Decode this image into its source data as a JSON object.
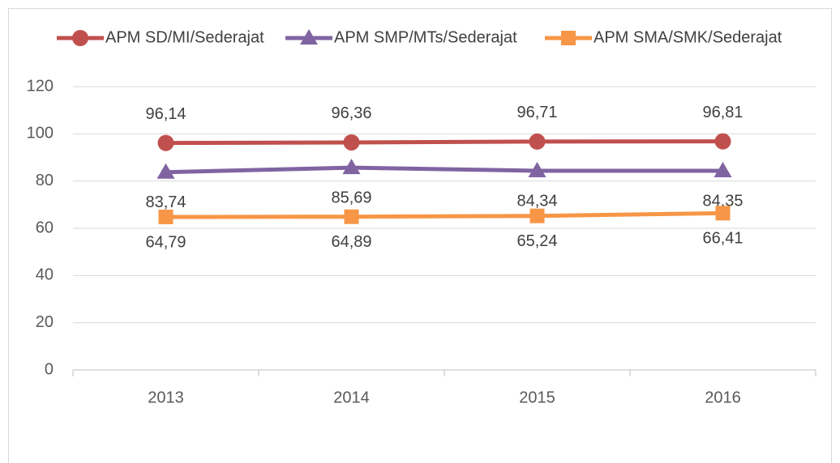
{
  "chart_data": {
    "type": "line",
    "categories": [
      "2013",
      "2014",
      "2015",
      "2016"
    ],
    "series": [
      {
        "name": "APM SD/MI/Sederajat",
        "color": "#c0504d",
        "marker": "circle",
        "values": [
          96.14,
          96.36,
          96.71,
          96.81
        ],
        "value_labels": [
          "96,14",
          "96,36",
          "96,71",
          "96,81"
        ]
      },
      {
        "name": "APM SMP/MTs/Sederajat",
        "color": "#8064a2",
        "marker": "triangle",
        "values": [
          83.74,
          85.69,
          84.34,
          84.35
        ],
        "value_labels": [
          "83,74",
          "85,69",
          "84,34",
          "84,35"
        ]
      },
      {
        "name": "APM SMA/SMK/Sederajat",
        "color": "#f79646",
        "marker": "square",
        "values": [
          64.79,
          64.89,
          65.24,
          66.41
        ],
        "value_labels": [
          "64,79",
          "64,89",
          "65,24",
          "66,41"
        ]
      }
    ],
    "ylim": [
      0,
      120
    ],
    "yticks": [
      0,
      20,
      40,
      60,
      80,
      100,
      120
    ],
    "grid": true,
    "legend": "top"
  }
}
